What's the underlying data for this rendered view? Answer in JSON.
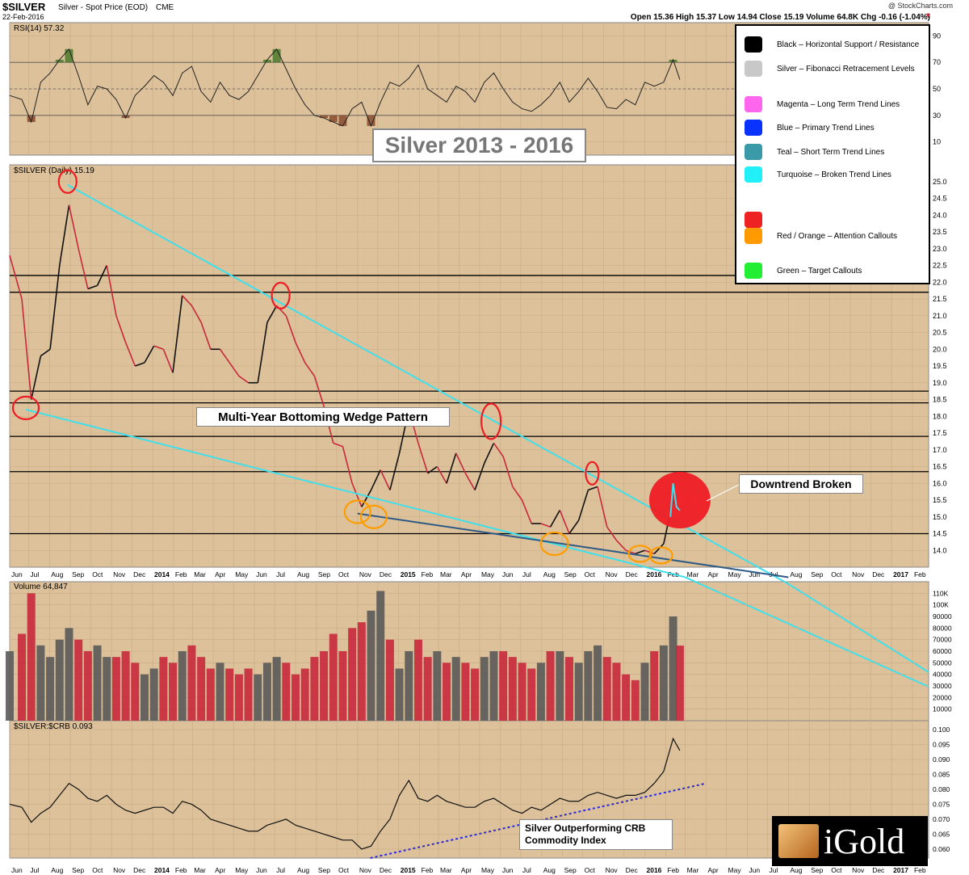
{
  "header": {
    "symbol": "$SILVER",
    "description": "Silver - Spot Price (EOD)",
    "exchange": "CME",
    "date": "22-Feb-2016",
    "credit": "@ StockCharts.com",
    "quote": "Open 15.36  High 15.37  Low 14.94  Close 15.19  Volume 64.8K  Chg -0.16 (-1.04%)"
  },
  "title_box": "Silver 2013 - 2016",
  "legend": {
    "items": [
      {
        "color": "#000000",
        "label": "Black – Horizontal Support / Resistance"
      },
      {
        "color": "#c8c8c8",
        "label": "Silver – Fibonacci Retracement Levels"
      },
      {
        "color": "#ff66ee",
        "label": "Magenta – Long Term Trend Lines"
      },
      {
        "color": "#0a32ff",
        "label": "Blue – Primary Trend Lines"
      },
      {
        "color": "#3a9aa8",
        "label": "Teal – Short Term Trend Lines"
      },
      {
        "color": "#22f0f8",
        "label": "Turquoise – Broken Trend Lines"
      },
      {
        "color": "#ee2222",
        "label": ""
      },
      {
        "color": "#ff9a00",
        "label": "Red / Orange – Attention Callouts"
      },
      {
        "color": "#22ee33",
        "label": "Green – Target Callouts"
      }
    ]
  },
  "annotations": {
    "wedge": "Multi-Year Bottoming Wedge Pattern",
    "downtrend": "Downtrend Broken",
    "crb_line1": "Silver Outperforming CRB",
    "crb_line2": "Commodity Index"
  },
  "logo": {
    "text": "iGold"
  },
  "colors": {
    "background": "#dcc19a",
    "up": "#111111",
    "down": "#c8283c",
    "trend_turquoise": "#3fe0ec",
    "trend_primary": "#2e5a86",
    "callout_red": "#ee1c24",
    "callout_orange": "#ff9c00"
  },
  "chart_data": [
    {
      "type": "line",
      "name": "rsi",
      "label": "RSI(14) 57.32",
      "ylim": [
        0,
        100
      ],
      "y_ticks": [
        "90",
        "70",
        "50",
        "30",
        "10"
      ],
      "reference_levels": [
        70,
        50,
        30
      ],
      "x": [
        "2013-06-03",
        "2013-06-21",
        "2013-07-05",
        "2013-07-19",
        "2013-08-02",
        "2013-08-16",
        "2013-08-30",
        "2013-09-13",
        "2013-09-27",
        "2013-10-11",
        "2013-10-25",
        "2013-11-08",
        "2013-11-22",
        "2013-12-06",
        "2013-12-20",
        "2014-01-03",
        "2014-01-17",
        "2014-01-31",
        "2014-02-14",
        "2014-02-28",
        "2014-03-14",
        "2014-03-28",
        "2014-04-11",
        "2014-04-25",
        "2014-05-09",
        "2014-05-23",
        "2014-06-06",
        "2014-06-20",
        "2014-07-04",
        "2014-07-18",
        "2014-08-01",
        "2014-08-15",
        "2014-08-29",
        "2014-09-12",
        "2014-09-26",
        "2014-10-10",
        "2014-10-24",
        "2014-11-07",
        "2014-11-21",
        "2014-12-05",
        "2014-12-19",
        "2015-01-02",
        "2015-01-16",
        "2015-01-30",
        "2015-02-13",
        "2015-02-27",
        "2015-03-13",
        "2015-03-27",
        "2015-04-10",
        "2015-04-24",
        "2015-05-08",
        "2015-05-22",
        "2015-06-05",
        "2015-06-19",
        "2015-07-03",
        "2015-07-17",
        "2015-07-31",
        "2015-08-14",
        "2015-08-28",
        "2015-09-11",
        "2015-09-25",
        "2015-10-09",
        "2015-10-23",
        "2015-11-06",
        "2015-11-20",
        "2015-12-04",
        "2015-12-18",
        "2016-01-01",
        "2016-01-15",
        "2016-01-29",
        "2016-02-12",
        "2016-02-22"
      ],
      "values": [
        45,
        42,
        25,
        55,
        62,
        72,
        80,
        60,
        38,
        52,
        50,
        42,
        28,
        45,
        52,
        60,
        55,
        45,
        62,
        67,
        48,
        40,
        55,
        45,
        42,
        48,
        60,
        72,
        80,
        65,
        50,
        38,
        30,
        28,
        25,
        22,
        35,
        40,
        22,
        40,
        55,
        52,
        58,
        68,
        50,
        45,
        40,
        52,
        48,
        40,
        55,
        62,
        50,
        40,
        35,
        33,
        38,
        45,
        55,
        40,
        48,
        58,
        48,
        36,
        35,
        42,
        38,
        55,
        52,
        55,
        72,
        57
      ]
    },
    {
      "type": "line",
      "name": "price",
      "label": "$SILVER (Daily) 15.19",
      "ylim": [
        13.5,
        25.5
      ],
      "y_ticks": [
        "25.0",
        "24.5",
        "24.0",
        "23.5",
        "23.0",
        "22.5",
        "22.0",
        "21.5",
        "21.0",
        "20.5",
        "20.0",
        "19.5",
        "19.0",
        "18.5",
        "18.0",
        "17.5",
        "17.0",
        "16.5",
        "16.0",
        "15.5",
        "15.0",
        "14.5",
        "14.0"
      ],
      "x": [
        "2013-06-03",
        "2013-06-21",
        "2013-07-05",
        "2013-07-19",
        "2013-08-02",
        "2013-08-16",
        "2013-08-30",
        "2013-09-13",
        "2013-09-27",
        "2013-10-11",
        "2013-10-25",
        "2013-11-08",
        "2013-11-22",
        "2013-12-06",
        "2013-12-20",
        "2014-01-03",
        "2014-01-17",
        "2014-01-31",
        "2014-02-14",
        "2014-02-28",
        "2014-03-14",
        "2014-03-28",
        "2014-04-11",
        "2014-04-25",
        "2014-05-09",
        "2014-05-23",
        "2014-06-06",
        "2014-06-20",
        "2014-07-04",
        "2014-07-18",
        "2014-08-01",
        "2014-08-15",
        "2014-08-29",
        "2014-09-12",
        "2014-09-26",
        "2014-10-10",
        "2014-10-24",
        "2014-11-07",
        "2014-11-21",
        "2014-12-05",
        "2014-12-19",
        "2015-01-02",
        "2015-01-16",
        "2015-01-30",
        "2015-02-13",
        "2015-02-27",
        "2015-03-13",
        "2015-03-27",
        "2015-04-10",
        "2015-04-24",
        "2015-05-08",
        "2015-05-22",
        "2015-06-05",
        "2015-06-19",
        "2015-07-03",
        "2015-07-17",
        "2015-07-31",
        "2015-08-14",
        "2015-08-28",
        "2015-09-11",
        "2015-09-25",
        "2015-10-09",
        "2015-10-23",
        "2015-11-06",
        "2015-11-20",
        "2015-12-04",
        "2015-12-18",
        "2016-01-01",
        "2016-01-15",
        "2016-01-29",
        "2016-02-12",
        "2016-02-22"
      ],
      "values": [
        22.8,
        21.5,
        18.5,
        19.8,
        20.0,
        22.5,
        24.3,
        23.0,
        21.8,
        21.9,
        22.5,
        21.0,
        20.2,
        19.5,
        19.6,
        20.1,
        20.0,
        19.3,
        21.6,
        21.3,
        20.8,
        20.0,
        20.0,
        19.6,
        19.2,
        19.0,
        19.0,
        20.8,
        21.3,
        21.0,
        20.2,
        19.6,
        19.2,
        18.3,
        17.2,
        17.1,
        16.0,
        15.3,
        15.8,
        16.4,
        15.8,
        16.9,
        18.2,
        17.2,
        16.3,
        16.5,
        16.0,
        16.9,
        16.3,
        15.8,
        16.6,
        17.2,
        16.8,
        15.9,
        15.5,
        14.8,
        14.8,
        14.7,
        15.2,
        14.5,
        14.9,
        15.8,
        15.9,
        14.7,
        14.3,
        14.0,
        13.9,
        14.0,
        13.9,
        14.2,
        15.5,
        15.19
      ],
      "horizontal_levels": [
        22.2,
        21.7,
        18.75,
        18.4,
        17.4,
        16.35,
        14.5
      ]
    },
    {
      "type": "bar",
      "name": "volume",
      "label": "Volume 64,847",
      "ylim": [
        0,
        120000
      ],
      "y_ticks": [
        "110K",
        "100K",
        "90000",
        "80000",
        "70000",
        "60000",
        "50000",
        "40000",
        "30000",
        "20000",
        "10000"
      ],
      "x": [
        "2013-06-03",
        "2013-06-21",
        "2013-07-05",
        "2013-07-19",
        "2013-08-02",
        "2013-08-16",
        "2013-08-30",
        "2013-09-13",
        "2013-09-27",
        "2013-10-11",
        "2013-10-25",
        "2013-11-08",
        "2013-11-22",
        "2013-12-06",
        "2013-12-20",
        "2014-01-03",
        "2014-01-17",
        "2014-01-31",
        "2014-02-14",
        "2014-02-28",
        "2014-03-14",
        "2014-03-28",
        "2014-04-11",
        "2014-04-25",
        "2014-05-09",
        "2014-05-23",
        "2014-06-06",
        "2014-06-20",
        "2014-07-04",
        "2014-07-18",
        "2014-08-01",
        "2014-08-15",
        "2014-08-29",
        "2014-09-12",
        "2014-09-26",
        "2014-10-10",
        "2014-10-24",
        "2014-11-07",
        "2014-11-21",
        "2014-12-05",
        "2014-12-19",
        "2015-01-02",
        "2015-01-16",
        "2015-01-30",
        "2015-02-13",
        "2015-02-27",
        "2015-03-13",
        "2015-03-27",
        "2015-04-10",
        "2015-04-24",
        "2015-05-08",
        "2015-05-22",
        "2015-06-05",
        "2015-06-19",
        "2015-07-03",
        "2015-07-17",
        "2015-07-31",
        "2015-08-14",
        "2015-08-28",
        "2015-09-11",
        "2015-09-25",
        "2015-10-09",
        "2015-10-23",
        "2015-11-06",
        "2015-11-20",
        "2015-12-04",
        "2015-12-18",
        "2016-01-01",
        "2016-01-15",
        "2016-01-29",
        "2016-02-12",
        "2016-02-22"
      ],
      "values": [
        60000,
        75000,
        110000,
        65000,
        55000,
        70000,
        80000,
        70000,
        60000,
        65000,
        55000,
        55000,
        60000,
        50000,
        40000,
        45000,
        55000,
        50000,
        60000,
        65000,
        55000,
        45000,
        50000,
        45000,
        40000,
        45000,
        40000,
        50000,
        55000,
        50000,
        40000,
        45000,
        55000,
        60000,
        75000,
        60000,
        80000,
        85000,
        95000,
        112000,
        70000,
        45000,
        60000,
        70000,
        55000,
        60000,
        50000,
        55000,
        50000,
        45000,
        55000,
        60000,
        60000,
        55000,
        50000,
        45000,
        50000,
        60000,
        60000,
        55000,
        50000,
        60000,
        65000,
        55000,
        50000,
        40000,
        35000,
        50000,
        60000,
        65000,
        90000,
        64847
      ]
    },
    {
      "type": "line",
      "name": "ratio",
      "label": "$SILVER:$CRB 0.093",
      "ylim": [
        0.057,
        0.103
      ],
      "y_ticks": [
        "0.100",
        "0.095",
        "0.090",
        "0.085",
        "0.080",
        "0.075",
        "0.070",
        "0.065",
        "0.060"
      ],
      "x": [
        "2013-06-03",
        "2013-06-21",
        "2013-07-05",
        "2013-07-19",
        "2013-08-02",
        "2013-08-16",
        "2013-08-30",
        "2013-09-13",
        "2013-09-27",
        "2013-10-11",
        "2013-10-25",
        "2013-11-08",
        "2013-11-22",
        "2013-12-06",
        "2013-12-20",
        "2014-01-03",
        "2014-01-17",
        "2014-01-31",
        "2014-02-14",
        "2014-02-28",
        "2014-03-14",
        "2014-03-28",
        "2014-04-11",
        "2014-04-25",
        "2014-05-09",
        "2014-05-23",
        "2014-06-06",
        "2014-06-20",
        "2014-07-04",
        "2014-07-18",
        "2014-08-01",
        "2014-08-15",
        "2014-08-29",
        "2014-09-12",
        "2014-09-26",
        "2014-10-10",
        "2014-10-24",
        "2014-11-07",
        "2014-11-21",
        "2014-12-05",
        "2014-12-19",
        "2015-01-02",
        "2015-01-16",
        "2015-01-30",
        "2015-02-13",
        "2015-02-27",
        "2015-03-13",
        "2015-03-27",
        "2015-04-10",
        "2015-04-24",
        "2015-05-08",
        "2015-05-22",
        "2015-06-05",
        "2015-06-19",
        "2015-07-03",
        "2015-07-17",
        "2015-07-31",
        "2015-08-14",
        "2015-08-28",
        "2015-09-11",
        "2015-09-25",
        "2015-10-09",
        "2015-10-23",
        "2015-11-06",
        "2015-11-20",
        "2015-12-04",
        "2015-12-18",
        "2016-01-01",
        "2016-01-15",
        "2016-01-29",
        "2016-02-12",
        "2016-02-22"
      ],
      "values": [
        0.075,
        0.074,
        0.069,
        0.072,
        0.074,
        0.078,
        0.082,
        0.08,
        0.077,
        0.076,
        0.078,
        0.075,
        0.073,
        0.072,
        0.073,
        0.074,
        0.074,
        0.072,
        0.076,
        0.075,
        0.073,
        0.07,
        0.069,
        0.068,
        0.067,
        0.066,
        0.066,
        0.068,
        0.069,
        0.07,
        0.068,
        0.067,
        0.066,
        0.065,
        0.064,
        0.063,
        0.063,
        0.06,
        0.061,
        0.066,
        0.07,
        0.078,
        0.083,
        0.077,
        0.076,
        0.078,
        0.076,
        0.075,
        0.074,
        0.074,
        0.076,
        0.077,
        0.075,
        0.073,
        0.072,
        0.074,
        0.073,
        0.075,
        0.077,
        0.076,
        0.076,
        0.078,
        0.079,
        0.078,
        0.077,
        0.078,
        0.078,
        0.079,
        0.082,
        0.086,
        0.097,
        0.093
      ]
    }
  ],
  "x_axis": {
    "labels": [
      {
        "date": "2013-06-03",
        "text": "Jun"
      },
      {
        "date": "2013-07-01",
        "text": "Jul"
      },
      {
        "date": "2013-08-01",
        "text": "Aug"
      },
      {
        "date": "2013-09-01",
        "text": "Sep"
      },
      {
        "date": "2013-10-01",
        "text": "Oct"
      },
      {
        "date": "2013-11-01",
        "text": "Nov"
      },
      {
        "date": "2013-12-01",
        "text": "Dec"
      },
      {
        "date": "2014-01-01",
        "text": "2014"
      },
      {
        "date": "2014-02-01",
        "text": "Feb"
      },
      {
        "date": "2014-03-01",
        "text": "Mar"
      },
      {
        "date": "2014-04-01",
        "text": "Apr"
      },
      {
        "date": "2014-05-01",
        "text": "May"
      },
      {
        "date": "2014-06-01",
        "text": "Jun"
      },
      {
        "date": "2014-07-01",
        "text": "Jul"
      },
      {
        "date": "2014-08-01",
        "text": "Aug"
      },
      {
        "date": "2014-09-01",
        "text": "Sep"
      },
      {
        "date": "2014-10-01",
        "text": "Oct"
      },
      {
        "date": "2014-11-01",
        "text": "Nov"
      },
      {
        "date": "2014-12-01",
        "text": "Dec"
      },
      {
        "date": "2015-01-01",
        "text": "2015"
      },
      {
        "date": "2015-02-01",
        "text": "Feb"
      },
      {
        "date": "2015-03-01",
        "text": "Mar"
      },
      {
        "date": "2015-04-01",
        "text": "Apr"
      },
      {
        "date": "2015-05-01",
        "text": "May"
      },
      {
        "date": "2015-06-01",
        "text": "Jun"
      },
      {
        "date": "2015-07-01",
        "text": "Jul"
      },
      {
        "date": "2015-08-01",
        "text": "Aug"
      },
      {
        "date": "2015-09-01",
        "text": "Sep"
      },
      {
        "date": "2015-10-01",
        "text": "Oct"
      },
      {
        "date": "2015-11-01",
        "text": "Nov"
      },
      {
        "date": "2015-12-01",
        "text": "Dec"
      },
      {
        "date": "2016-01-01",
        "text": "2016"
      },
      {
        "date": "2016-02-01",
        "text": "Feb"
      },
      {
        "date": "2016-03-01",
        "text": "Mar"
      },
      {
        "date": "2016-04-01",
        "text": "Apr"
      },
      {
        "date": "2016-05-01",
        "text": "May"
      },
      {
        "date": "2016-06-01",
        "text": "Jun"
      },
      {
        "date": "2016-07-01",
        "text": "Jul"
      },
      {
        "date": "2016-08-01",
        "text": "Aug"
      },
      {
        "date": "2016-09-01",
        "text": "Sep"
      },
      {
        "date": "2016-10-01",
        "text": "Oct"
      },
      {
        "date": "2016-11-01",
        "text": "Nov"
      },
      {
        "date": "2016-12-01",
        "text": "Dec"
      },
      {
        "date": "2017-01-01",
        "text": "2017"
      },
      {
        "date": "2017-02-01",
        "text": "Feb"
      }
    ]
  }
}
